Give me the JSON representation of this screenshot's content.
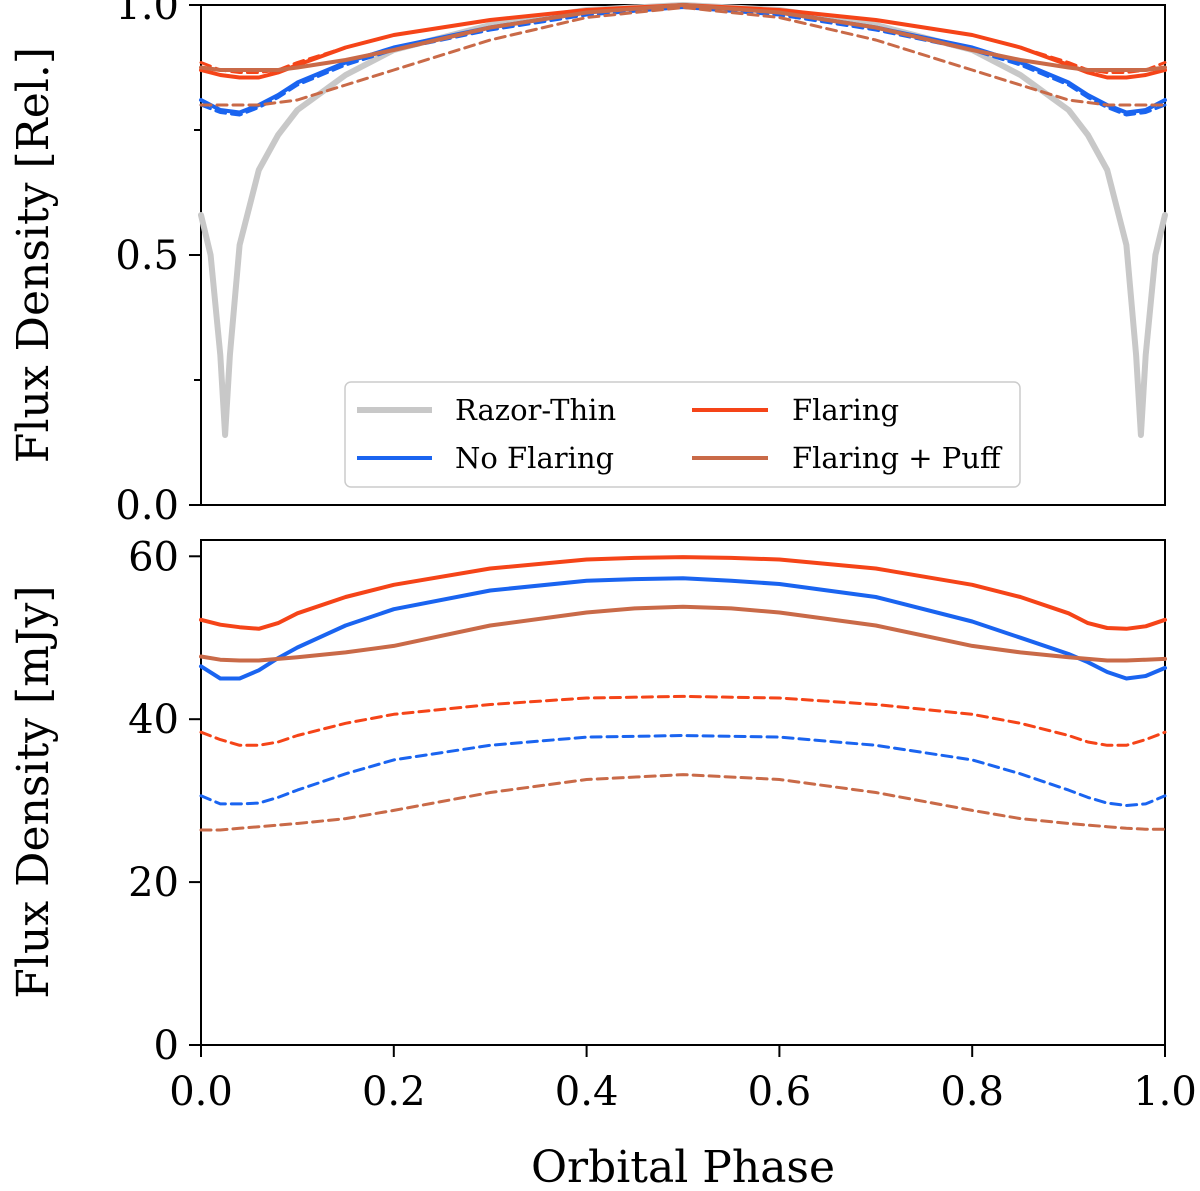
{
  "colors": {
    "razor_thin": "#c8c8c8",
    "no_flaring": "#1a64f0",
    "flaring": "#f54418",
    "flaring_puff": "#c96a48"
  },
  "chart_data": [
    {
      "id": "top",
      "type": "line",
      "ylabel": "Flux Density [Rel.]",
      "xlim": [
        0,
        1
      ],
      "ylim": [
        0,
        1.0
      ],
      "yticks": [
        0.0,
        0.5,
        1.0
      ],
      "yticklabels": [
        "0.0",
        "0.5",
        "1.0"
      ],
      "yminor_ticks": [
        0.25,
        0.75
      ],
      "legend": {
        "placement": "lower-center",
        "entries": [
          {
            "label": "Razor-Thin",
            "series": "razor"
          },
          {
            "label": "Flaring",
            "series": "flaring"
          },
          {
            "label": "No Flaring",
            "series": "noflare"
          },
          {
            "label": "Flaring + Puff",
            "series": "puff"
          }
        ]
      },
      "series": [
        {
          "name": "Razor-Thin",
          "key": "razor",
          "style": "solid",
          "width": 6,
          "x": [
            0,
            0.01,
            0.02,
            0.025,
            0.03,
            0.04,
            0.06,
            0.08,
            0.1,
            0.15,
            0.2,
            0.3,
            0.4,
            0.5,
            0.6,
            0.7,
            0.8,
            0.85,
            0.9,
            0.92,
            0.94,
            0.96,
            0.97,
            0.975,
            0.98,
            0.99,
            1.0
          ],
          "y": [
            0.58,
            0.5,
            0.3,
            0.14,
            0.3,
            0.52,
            0.67,
            0.74,
            0.79,
            0.86,
            0.91,
            0.96,
            0.99,
            1.0,
            0.99,
            0.96,
            0.91,
            0.86,
            0.79,
            0.74,
            0.67,
            0.52,
            0.3,
            0.14,
            0.3,
            0.5,
            0.58
          ]
        },
        {
          "name": "No Flaring",
          "key": "noflare",
          "style": "solid",
          "width": 4,
          "x": [
            0,
            0.02,
            0.04,
            0.06,
            0.08,
            0.1,
            0.15,
            0.2,
            0.3,
            0.4,
            0.5,
            0.6,
            0.7,
            0.8,
            0.85,
            0.9,
            0.92,
            0.94,
            0.96,
            0.98,
            1.0
          ],
          "y": [
            0.81,
            0.79,
            0.785,
            0.8,
            0.82,
            0.845,
            0.885,
            0.915,
            0.955,
            0.985,
            1.0,
            0.985,
            0.955,
            0.915,
            0.885,
            0.845,
            0.82,
            0.8,
            0.785,
            0.79,
            0.81
          ]
        },
        {
          "name": "No Flaring (dashed)",
          "key": "noflare_d",
          "style": "dashed",
          "width": 3,
          "x": [
            0,
            0.02,
            0.04,
            0.06,
            0.08,
            0.1,
            0.15,
            0.2,
            0.3,
            0.4,
            0.5,
            0.6,
            0.7,
            0.8,
            0.85,
            0.9,
            0.92,
            0.94,
            0.96,
            0.98,
            1.0
          ],
          "y": [
            0.8,
            0.785,
            0.78,
            0.795,
            0.815,
            0.84,
            0.88,
            0.91,
            0.95,
            0.98,
            0.995,
            0.98,
            0.95,
            0.91,
            0.88,
            0.84,
            0.815,
            0.795,
            0.78,
            0.785,
            0.8
          ]
        },
        {
          "name": "Flaring",
          "key": "flaring",
          "style": "solid",
          "width": 4,
          "x": [
            0,
            0.02,
            0.04,
            0.06,
            0.08,
            0.1,
            0.15,
            0.2,
            0.3,
            0.4,
            0.5,
            0.6,
            0.7,
            0.8,
            0.85,
            0.9,
            0.92,
            0.94,
            0.96,
            0.98,
            1.0
          ],
          "y": [
            0.87,
            0.86,
            0.855,
            0.855,
            0.865,
            0.88,
            0.915,
            0.94,
            0.97,
            0.99,
            1.0,
            0.99,
            0.97,
            0.94,
            0.915,
            0.88,
            0.865,
            0.855,
            0.855,
            0.86,
            0.87
          ]
        },
        {
          "name": "Flaring (dashed)",
          "key": "flaring_d",
          "style": "dashed",
          "width": 3,
          "x": [
            0,
            0.02,
            0.04,
            0.06,
            0.08,
            0.1,
            0.15,
            0.2,
            0.3,
            0.4,
            0.5,
            0.6,
            0.7,
            0.8,
            0.85,
            0.9,
            0.92,
            0.94,
            0.96,
            0.98,
            1.0
          ],
          "y": [
            0.885,
            0.87,
            0.865,
            0.865,
            0.87,
            0.885,
            0.915,
            0.94,
            0.97,
            0.99,
            1.0,
            0.99,
            0.97,
            0.94,
            0.915,
            0.885,
            0.87,
            0.865,
            0.865,
            0.87,
            0.885
          ]
        },
        {
          "name": "Flaring + Puff",
          "key": "puff",
          "style": "solid",
          "width": 4,
          "x": [
            0,
            0.02,
            0.04,
            0.06,
            0.08,
            0.1,
            0.15,
            0.2,
            0.3,
            0.4,
            0.5,
            0.6,
            0.7,
            0.8,
            0.85,
            0.9,
            0.92,
            0.94,
            0.96,
            0.98,
            1.0
          ],
          "y": [
            0.875,
            0.87,
            0.87,
            0.87,
            0.87,
            0.875,
            0.89,
            0.91,
            0.955,
            0.985,
            1.0,
            0.985,
            0.955,
            0.91,
            0.89,
            0.875,
            0.87,
            0.87,
            0.87,
            0.87,
            0.875
          ]
        },
        {
          "name": "Flaring + Puff (dashed)",
          "key": "puff_d",
          "style": "dashed",
          "width": 3,
          "x": [
            0,
            0.02,
            0.04,
            0.06,
            0.08,
            0.1,
            0.15,
            0.2,
            0.3,
            0.4,
            0.5,
            0.6,
            0.7,
            0.8,
            0.85,
            0.9,
            0.92,
            0.94,
            0.96,
            0.98,
            1.0
          ],
          "y": [
            0.8,
            0.8,
            0.8,
            0.8,
            0.805,
            0.81,
            0.84,
            0.87,
            0.93,
            0.975,
            0.995,
            0.975,
            0.93,
            0.87,
            0.84,
            0.81,
            0.805,
            0.8,
            0.8,
            0.8,
            0.8
          ]
        }
      ]
    },
    {
      "id": "bottom",
      "type": "line",
      "xlabel": "Orbital Phase",
      "ylabel": "Flux Density [mJy]",
      "xlim": [
        0,
        1
      ],
      "ylim": [
        0,
        62
      ],
      "xticks": [
        0.0,
        0.2,
        0.4,
        0.6,
        0.8,
        1.0
      ],
      "xticklabels": [
        "0.0",
        "0.2",
        "0.4",
        "0.6",
        "0.8",
        "1.0"
      ],
      "yticks": [
        0,
        20,
        40,
        60
      ],
      "yticklabels": [
        "0",
        "20",
        "40",
        "60"
      ],
      "series": [
        {
          "name": "Flaring",
          "key": "flaring",
          "style": "solid",
          "width": 4,
          "x": [
            0,
            0.02,
            0.04,
            0.06,
            0.08,
            0.1,
            0.15,
            0.2,
            0.3,
            0.4,
            0.45,
            0.5,
            0.55,
            0.6,
            0.7,
            0.8,
            0.85,
            0.9,
            0.92,
            0.94,
            0.96,
            0.98,
            1.0
          ],
          "y": [
            52.2,
            51.6,
            51.3,
            51.1,
            51.8,
            53.0,
            55.0,
            56.5,
            58.5,
            59.6,
            59.8,
            59.9,
            59.8,
            59.6,
            58.5,
            56.5,
            55.0,
            53.0,
            51.8,
            51.2,
            51.1,
            51.4,
            52.2
          ]
        },
        {
          "name": "Flaring (dashed)",
          "key": "flaring_d",
          "style": "dashed",
          "width": 3,
          "x": [
            0,
            0.02,
            0.04,
            0.06,
            0.08,
            0.1,
            0.15,
            0.2,
            0.3,
            0.4,
            0.5,
            0.6,
            0.7,
            0.8,
            0.85,
            0.9,
            0.92,
            0.94,
            0.96,
            0.98,
            1.0
          ],
          "y": [
            38.4,
            37.5,
            36.8,
            36.8,
            37.2,
            38.0,
            39.5,
            40.6,
            41.8,
            42.6,
            42.8,
            42.6,
            41.8,
            40.6,
            39.5,
            38.0,
            37.2,
            36.8,
            36.8,
            37.5,
            38.4
          ]
        },
        {
          "name": "No Flaring",
          "key": "noflare",
          "style": "solid",
          "width": 4,
          "x": [
            0,
            0.02,
            0.04,
            0.06,
            0.08,
            0.1,
            0.15,
            0.2,
            0.3,
            0.4,
            0.45,
            0.5,
            0.55,
            0.6,
            0.7,
            0.8,
            0.85,
            0.9,
            0.92,
            0.94,
            0.96,
            0.98,
            1.0
          ],
          "y": [
            46.5,
            45.0,
            45.0,
            46.0,
            47.5,
            48.8,
            51.5,
            53.5,
            55.8,
            57.0,
            57.2,
            57.3,
            57.0,
            56.6,
            55.0,
            52.0,
            50.0,
            48.0,
            47.0,
            45.8,
            45.0,
            45.3,
            46.3
          ]
        },
        {
          "name": "No Flaring (dashed)",
          "key": "noflare_d",
          "style": "dashed",
          "width": 3,
          "x": [
            0,
            0.02,
            0.04,
            0.06,
            0.08,
            0.1,
            0.15,
            0.2,
            0.3,
            0.4,
            0.5,
            0.6,
            0.7,
            0.8,
            0.85,
            0.9,
            0.92,
            0.94,
            0.96,
            0.98,
            1.0
          ],
          "y": [
            30.6,
            29.6,
            29.6,
            29.7,
            30.4,
            31.3,
            33.3,
            35.0,
            36.8,
            37.8,
            38.0,
            37.8,
            36.8,
            35.0,
            33.3,
            31.3,
            30.4,
            29.7,
            29.4,
            29.6,
            30.6
          ]
        },
        {
          "name": "Flaring + Puff",
          "key": "puff",
          "style": "solid",
          "width": 4,
          "x": [
            0,
            0.02,
            0.04,
            0.06,
            0.08,
            0.1,
            0.15,
            0.2,
            0.3,
            0.4,
            0.45,
            0.5,
            0.55,
            0.6,
            0.7,
            0.8,
            0.85,
            0.9,
            0.92,
            0.94,
            0.96,
            0.98,
            1.0
          ],
          "y": [
            47.7,
            47.3,
            47.2,
            47.2,
            47.4,
            47.6,
            48.2,
            49.0,
            51.5,
            53.1,
            53.6,
            53.8,
            53.6,
            53.1,
            51.5,
            49.0,
            48.2,
            47.6,
            47.4,
            47.2,
            47.2,
            47.3,
            47.4
          ]
        },
        {
          "name": "Flaring + Puff (dashed)",
          "key": "puff_d",
          "style": "dashed",
          "width": 3,
          "x": [
            0,
            0.02,
            0.04,
            0.06,
            0.08,
            0.1,
            0.15,
            0.2,
            0.3,
            0.4,
            0.5,
            0.6,
            0.7,
            0.8,
            0.85,
            0.9,
            0.92,
            0.94,
            0.96,
            0.98,
            1.0
          ],
          "y": [
            26.4,
            26.4,
            26.6,
            26.8,
            27.0,
            27.2,
            27.8,
            28.8,
            31.0,
            32.6,
            33.2,
            32.6,
            31.0,
            28.8,
            27.8,
            27.2,
            27.0,
            26.8,
            26.6,
            26.5,
            26.5
          ]
        }
      ]
    }
  ]
}
